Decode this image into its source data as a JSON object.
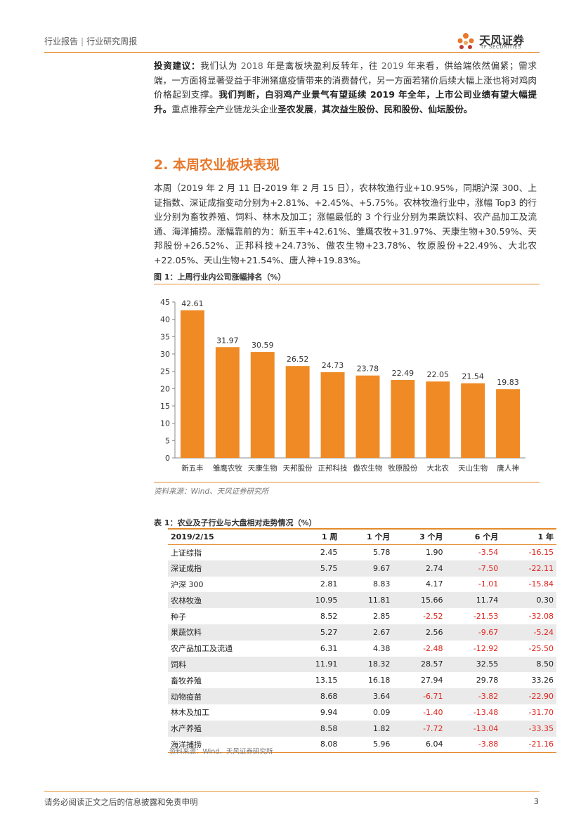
{
  "header": {
    "crumb1": "行业报告",
    "separator": "|",
    "crumb2": "行业研究周报",
    "logo_cn": "天风证券",
    "logo_en": "TF SECURITIES"
  },
  "investment": {
    "label": "投资建议：",
    "t1": "我们认为 ",
    "n1": "2018",
    "t2": " 年是禽板块盈利反转年，往 ",
    "n2": "2019",
    "t3": " 年来看，供给端依然偏紧；需求端，一方面将显著受益于非洲猪瘟疫情带来的消费替代，另一方面若猪价后续大幅上涨也将对鸡肉价格起到支撑。",
    "b1": "我们判断，白羽鸡产业景气有望延续 2019 年全年，上市公司业绩有望大幅提升。",
    "t4": "重点推荐全产业链龙头企业",
    "b2": "圣农发展",
    "t5": "，",
    "b3": "其次益生股份、民和股份、仙坛股份。"
  },
  "section": {
    "title": "2. 本周农业板块表现"
  },
  "weekly": {
    "text": "本周（2019 年 2 月 11 日-2019 年 2 月 15 日），农林牧渔行业+10.95%，同期沪深 300、上证指数、深证成指变动分别为+2.81%、+2.45%、+5.75%。农林牧渔行业中，涨幅 Top3 的行业分别为畜牧养殖、饲料、林木及加工；涨幅最低的 3 个行业分别为果蔬饮料、农产品加工及流通、海洋捕捞。涨幅靠前的为：新五丰+42.61%、雏鹰农牧+31.97%、天康生物+30.59%、天邦股份+26.52%、正邦科技+24.73%、傲农生物+23.78%、牧原股份+22.49%、大北农+22.05%、天山生物+21.54%、唐人神+19.83%。"
  },
  "figure": {
    "title": "图 1：上周行业内公司涨幅排名（%）",
    "source": "资料来源：Wind、天风证券研究所"
  },
  "chart_data": {
    "type": "bar",
    "title": "上周行业内公司涨幅排名（%）",
    "categories": [
      "新五丰",
      "雏鹰农牧",
      "天康生物",
      "天邦股份",
      "正邦科技",
      "傲农生物",
      "牧原股份",
      "大北农",
      "天山生物",
      "唐人神"
    ],
    "values": [
      42.61,
      31.97,
      30.59,
      26.52,
      24.73,
      23.78,
      22.49,
      22.05,
      21.54,
      19.83
    ],
    "value_labels": [
      "42.61",
      "31.97",
      "30.59",
      "26.52",
      "24.73",
      "23.78",
      "22.49",
      "22.05",
      "21.54",
      "19.83"
    ],
    "yticks": [
      "0",
      "5",
      "10",
      "15",
      "20",
      "25",
      "30",
      "35",
      "40",
      "45"
    ],
    "ylim": [
      0,
      45
    ],
    "bar_color": "#f08a24",
    "grid": false
  },
  "table": {
    "title": "表 1：农业及子行业与大盘相对走势情况（%）",
    "headers": [
      "2019/2/15",
      "1 周",
      "1 个月",
      "3 个月",
      "6 个月",
      "1 年"
    ],
    "rows": [
      [
        "上证综指",
        "2.45",
        "5.78",
        "1.90",
        "-3.54",
        "-16.15"
      ],
      [
        "深证成指",
        "5.75",
        "9.67",
        "2.74",
        "-7.50",
        "-22.11"
      ],
      [
        "沪深 300",
        "2.81",
        "8.83",
        "4.17",
        "-1.01",
        "-15.84"
      ],
      [
        "农林牧渔",
        "10.95",
        "11.81",
        "15.66",
        "11.74",
        "0.30"
      ],
      [
        "种子",
        "8.52",
        "2.85",
        "-2.52",
        "-21.53",
        "-32.08"
      ],
      [
        "果蔬饮料",
        "5.27",
        "2.67",
        "2.56",
        "-9.67",
        "-5.24"
      ],
      [
        "农产品加工及流通",
        "6.31",
        "4.38",
        "-2.48",
        "-12.92",
        "-25.50"
      ],
      [
        "饲料",
        "11.91",
        "18.32",
        "28.57",
        "32.55",
        "8.50"
      ],
      [
        "畜牧养殖",
        "13.15",
        "16.18",
        "27.94",
        "29.78",
        "33.26"
      ],
      [
        "动物疫苗",
        "8.68",
        "3.64",
        "-6.71",
        "-3.82",
        "-22.90"
      ],
      [
        "林木及加工",
        "9.94",
        "0.09",
        "-1.40",
        "-13.48",
        "-31.70"
      ],
      [
        "水产养殖",
        "8.58",
        "1.82",
        "-7.72",
        "-13.04",
        "-33.35"
      ],
      [
        "海洋捕捞",
        "8.08",
        "5.96",
        "6.04",
        "-3.88",
        "-21.16"
      ]
    ],
    "source": "资料来源：Wind、天风证券研究所"
  },
  "footer": {
    "disclaimer": "请务必阅读正文之后的信息披露和免责申明",
    "page": "3"
  },
  "colors": {
    "accent": "#e58a2c",
    "negative": "#e0241b",
    "bar": "#f08a24"
  }
}
